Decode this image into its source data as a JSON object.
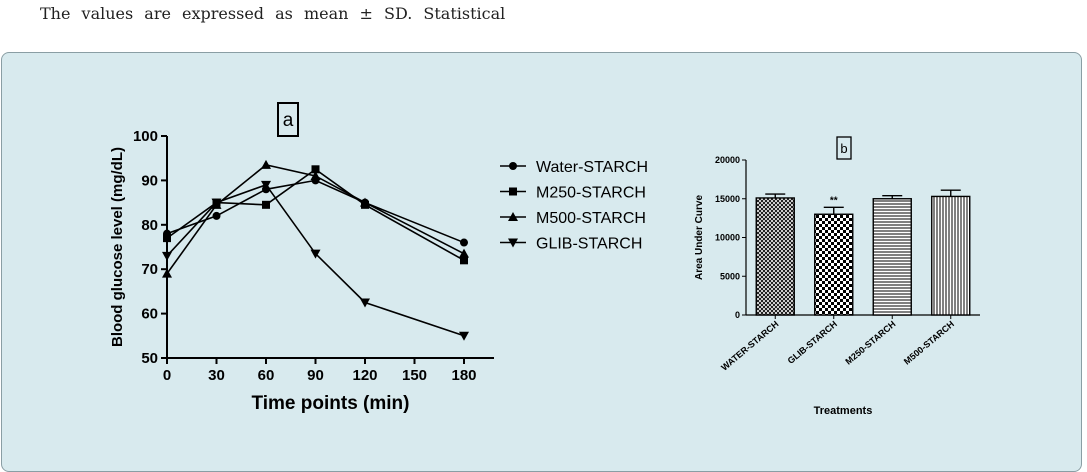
{
  "caption": "The values are expressed as mean ± SD. Statistical",
  "chart_data": [
    {
      "type": "line",
      "panel_label": "a",
      "xlabel": "Time points (min)",
      "ylabel": "Blood glucose level (mg/dL)",
      "xlim": [
        0,
        180
      ],
      "ylim": [
        50,
        100
      ],
      "x": [
        0,
        30,
        60,
        90,
        120,
        180
      ],
      "xticks": [
        0,
        30,
        60,
        90,
        120,
        150,
        180
      ],
      "yticks": [
        50,
        60,
        70,
        80,
        90,
        100
      ],
      "legend_position": "right",
      "series": [
        {
          "name": "Water-STARCH",
          "marker": "circle",
          "values": [
            78,
            82,
            88,
            90,
            85,
            76
          ]
        },
        {
          "name": "M250-STARCH",
          "marker": "square",
          "values": [
            77,
            85,
            84.5,
            92.5,
            84.5,
            72
          ]
        },
        {
          "name": "M500-STARCH",
          "marker": "triangle-up",
          "values": [
            69,
            84.5,
            93.5,
            91,
            85,
            73.5
          ]
        },
        {
          "name": "GLIB-STARCH",
          "marker": "triangle-down",
          "values": [
            73,
            85,
            89,
            73.5,
            62.5,
            55
          ]
        }
      ]
    },
    {
      "type": "bar",
      "panel_label": "b",
      "xlabel": "Treatments",
      "ylabel": "Area Under Curve",
      "ylim": [
        0,
        20000
      ],
      "yticks": [
        0,
        5000,
        10000,
        15000,
        20000
      ],
      "categories": [
        "WATER-STARCH",
        "GLIB-STARCH",
        "M250-STARCH",
        "M500-STARCH"
      ],
      "values": [
        15100,
        13000,
        15000,
        15300
      ],
      "errors": [
        500,
        900,
        400,
        800
      ],
      "annotations": [
        "",
        "**",
        "",
        ""
      ],
      "patterns": [
        "crosshatch",
        "checker",
        "horizontal",
        "vertical"
      ]
    }
  ]
}
